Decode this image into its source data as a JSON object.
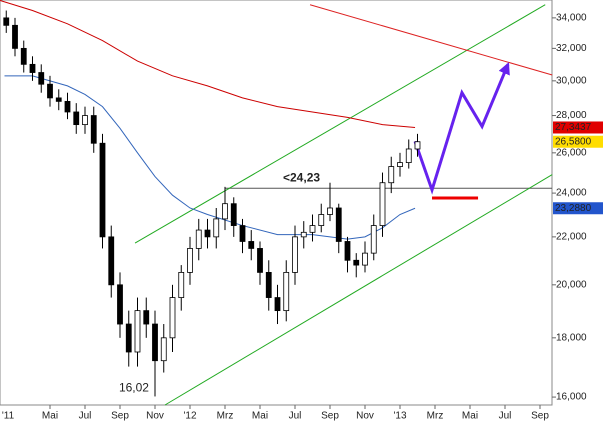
{
  "chart_data": {
    "type": "candlestick",
    "x": [
      1.5,
      2,
      2.5,
      3,
      3.5,
      4,
      4.5,
      5,
      5.5,
      6,
      6.5,
      7,
      7.5,
      8,
      8.5,
      9,
      9.5,
      10,
      10.5,
      11,
      11.5,
      12,
      12.5,
      13,
      13.5,
      14,
      14.5,
      15,
      15.5,
      16,
      16.5,
      17,
      17.5,
      18,
      18.5,
      19,
      19.5,
      20,
      20.5,
      21,
      21.5,
      22,
      22.5,
      23,
      23.5,
      24,
      24.5,
      25
    ],
    "open": [
      34,
      33.5,
      32.0,
      31.0,
      30.5,
      29.8,
      29.0,
      28.8,
      28.2,
      27.5,
      28.0,
      26.5,
      22.0,
      20.0,
      18.5,
      17.5,
      19.0,
      18.5,
      17.2,
      18.0,
      19.5,
      20.5,
      21.5,
      22.3,
      22.0,
      22.8,
      23.5,
      22.5,
      21.8,
      21.5,
      20.5,
      19.5,
      19.0,
      20.5,
      22.0,
      22.2,
      22.5,
      23.0,
      23.3,
      21.8,
      21.0,
      20.8,
      21.3,
      22.5,
      24.5,
      25.3,
      25.5,
      26.2
    ],
    "high": [
      34.5,
      34.0,
      32.5,
      31.5,
      31.0,
      30.3,
      29.5,
      29.3,
      28.7,
      28.5,
      28.5,
      27.0,
      22.5,
      20.5,
      19.0,
      19.5,
      19.5,
      19.0,
      18.5,
      20.0,
      20.8,
      22.0,
      22.8,
      22.8,
      23.3,
      24.3,
      23.8,
      22.8,
      22.3,
      21.8,
      21.0,
      20.0,
      21.0,
      22.5,
      22.7,
      23.0,
      23.5,
      24.5,
      23.5,
      22.0,
      21.3,
      21.8,
      23.0,
      25.0,
      25.8,
      26.0,
      26.7,
      27.0
    ],
    "low": [
      33.0,
      31.5,
      30.5,
      30.0,
      29.3,
      28.5,
      28.3,
      27.8,
      27.0,
      27.0,
      26.0,
      21.5,
      19.5,
      18.0,
      17.0,
      17.0,
      18.0,
      16.02,
      16.8,
      17.5,
      19.0,
      20.0,
      21.0,
      21.5,
      21.5,
      22.3,
      22.0,
      21.3,
      21.0,
      20.0,
      19.0,
      18.5,
      18.6,
      20.0,
      21.5,
      21.8,
      22.2,
      22.7,
      21.3,
      20.5,
      20.3,
      20.5,
      21.0,
      22.0,
      24.0,
      24.8,
      25.2,
      25.8
    ],
    "close": [
      33.5,
      32.0,
      31.0,
      30.5,
      29.8,
      29.0,
      28.8,
      28.2,
      27.5,
      28.0,
      26.5,
      22.0,
      20.0,
      18.5,
      17.5,
      19.0,
      18.5,
      17.2,
      18.0,
      19.5,
      20.5,
      21.5,
      22.3,
      22.0,
      22.8,
      23.5,
      22.5,
      21.8,
      21.5,
      20.5,
      19.5,
      19.0,
      20.5,
      22.0,
      22.2,
      22.5,
      23.0,
      23.3,
      21.8,
      21.0,
      20.8,
      21.3,
      22.5,
      24.5,
      25.3,
      25.5,
      26.2,
      26.58
    ],
    "moving_averages": [
      {
        "color": "#cc0000",
        "x": [
          1.14,
          3,
          5,
          7,
          9,
          11,
          13,
          15,
          17,
          19,
          21,
          23,
          24.86
        ],
        "y": [
          35.2,
          34.5,
          33.6,
          32.5,
          31.2,
          30.3,
          29.7,
          29.0,
          28.5,
          28.2,
          27.9,
          27.5,
          27.3437
        ]
      },
      {
        "color": "#3366bb",
        "x": [
          1.4,
          3,
          5,
          6,
          7,
          8,
          9,
          10,
          11,
          12,
          13,
          15,
          17,
          19,
          21,
          22,
          23,
          24,
          24.86
        ],
        "y": [
          30.3,
          30.3,
          29.7,
          29.2,
          28.5,
          27.3,
          26.0,
          24.8,
          23.9,
          23.3,
          23.0,
          22.5,
          22.1,
          22.1,
          21.9,
          22.0,
          22.4,
          23.0,
          23.288
        ]
      }
    ],
    "overlays": [
      {
        "color": "#22aa22",
        "x": [
          8.86,
          32.3
        ],
        "y": [
          21.73,
          34.9
        ]
      },
      {
        "color": "#22aa22",
        "x": [
          10.57,
          32.7
        ],
        "y": [
          15.75,
          24.9
        ]
      },
      {
        "color": "#dd2222",
        "x": [
          18.86,
          32.7
        ],
        "y": [
          34.9,
          30.35
        ]
      },
      {
        "color": "#ee0000",
        "x": [
          25.83,
          28.46
        ],
        "y": [
          23.77,
          23.77
        ]
      },
      {
        "color": "#6622ee",
        "x": [
          24.86,
          25.83,
          27.54,
          28.69,
          30.17
        ],
        "y": [
          26.6,
          24.15,
          29.3,
          27.4,
          31.0
        ],
        "arrow": true
      }
    ],
    "level": {
      "value": 24.23,
      "from": 14,
      "label": "<24,23"
    },
    "low_label": "16,02",
    "last_values": [
      {
        "value": 27.3437,
        "label": "27,3437",
        "color": "#e00000"
      },
      {
        "value": 26.58,
        "label": "26,5800",
        "color": "#ffdd00"
      },
      {
        "value": 23.288,
        "label": "23,2880",
        "color": "#2255cc"
      }
    ],
    "xlim": [
      1.1429,
      32.686
    ],
    "ylim": [
      15.75,
      35.23
    ],
    "log_y": true,
    "xticks": [
      {
        "value": 0,
        "label": "'11"
      },
      {
        "value": 4,
        "label": "Mai"
      },
      {
        "value": 6,
        "label": "Jul"
      },
      {
        "value": 8,
        "label": "Sep"
      },
      {
        "value": 10,
        "label": "Nov"
      },
      {
        "value": 12,
        "label": "'12"
      },
      {
        "value": 14,
        "label": "Mrz"
      },
      {
        "value": 16,
        "label": "Mai"
      },
      {
        "value": 18,
        "label": "Jul"
      },
      {
        "value": 20,
        "label": "Sep"
      },
      {
        "value": 22,
        "label": "Nov"
      },
      {
        "value": 24,
        "label": "'13"
      },
      {
        "value": 26,
        "label": "Mrz"
      },
      {
        "value": 28,
        "label": "Mai"
      },
      {
        "value": 30,
        "label": "Jul"
      },
      {
        "value": 32,
        "label": "Sep"
      }
    ],
    "yticks": [
      {
        "value": 16,
        "label": "16,000"
      },
      {
        "value": 18,
        "label": "18,000"
      },
      {
        "value": 20,
        "label": "20,000"
      },
      {
        "value": 22,
        "label": "22,000"
      },
      {
        "value": 24,
        "label": "24,000"
      },
      {
        "value": 26,
        "label": "26,000"
      },
      {
        "value": 28,
        "label": "28,000"
      },
      {
        "value": 30,
        "label": "30,000"
      },
      {
        "value": 32,
        "label": "32,000"
      },
      {
        "value": 34,
        "label": "34,000"
      }
    ]
  }
}
